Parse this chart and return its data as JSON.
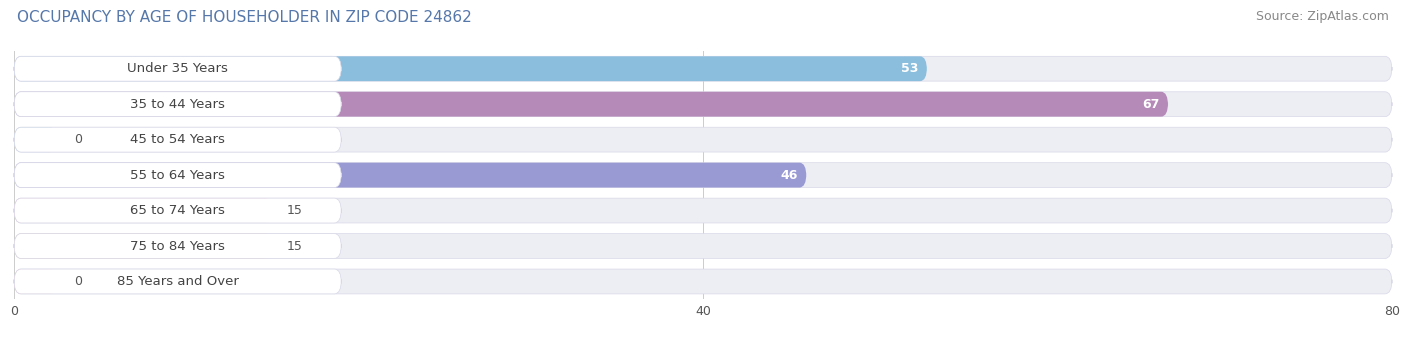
{
  "title": "OCCUPANCY BY AGE OF HOUSEHOLDER IN ZIP CODE 24862",
  "source": "Source: ZipAtlas.com",
  "categories": [
    "Under 35 Years",
    "35 to 44 Years",
    "45 to 54 Years",
    "55 to 64 Years",
    "65 to 74 Years",
    "75 to 84 Years",
    "85 Years and Over"
  ],
  "values": [
    53,
    67,
    0,
    46,
    15,
    15,
    0
  ],
  "bar_colors": [
    "#8bbedd",
    "#b589b8",
    "#72d0cc",
    "#9999d4",
    "#f59ab8",
    "#f5c99a",
    "#f5a59a"
  ],
  "bar_bg_color": "#ededf4",
  "xlim_max": 80,
  "xticks": [
    0,
    40,
    80
  ],
  "title_fontsize": 11,
  "source_fontsize": 9,
  "label_fontsize": 9.5,
  "value_fontsize": 9,
  "background_color": "#ffffff",
  "title_color": "#5577aa",
  "label_color": "#444444",
  "grid_color": "#cccccc",
  "value_inside_color": "#ffffff",
  "value_outside_color": "#555555"
}
